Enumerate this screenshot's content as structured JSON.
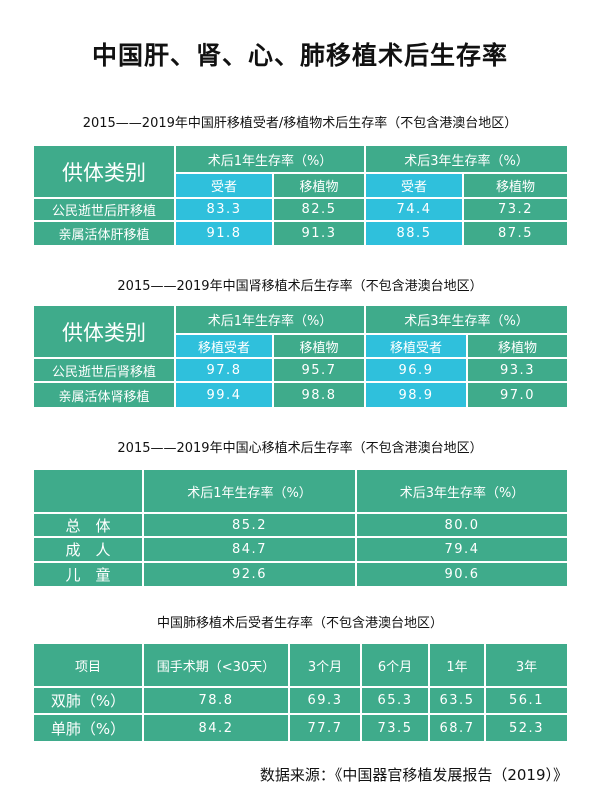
{
  "title": "中国肝、肾、心、肺移植术后生存率",
  "liver": {
    "subtitle": "2015——2019年中国肝移植受者/移植物术后生存率（不包含港澳台地区）",
    "corner": "供体类别",
    "groups": [
      "术后1年生存率（%）",
      "术后3年生存率（%）"
    ],
    "subheaders": [
      "受者",
      "移植物",
      "受者",
      "移植物"
    ],
    "rows": [
      {
        "label": "公民逝世后肝移植",
        "values": [
          "83.3",
          "82.5",
          "74.4",
          "73.2"
        ]
      },
      {
        "label": "亲属活体肝移植",
        "values": [
          "91.8",
          "91.3",
          "88.5",
          "87.5"
        ]
      }
    ]
  },
  "kidney": {
    "subtitle": "2015——2019年中国肾移植术后生存率（不包含港澳台地区）",
    "corner": "供体类别",
    "groups": [
      "术后1年生存率（%）",
      "术后3年生存率（%）"
    ],
    "subheaders": [
      "移植受者",
      "移植物",
      "移植受者",
      "移植物"
    ],
    "rows": [
      {
        "label": "公民逝世后肾移植",
        "values": [
          "97.8",
          "95.7",
          "96.9",
          "93.3"
        ]
      },
      {
        "label": "亲属活体肾移植",
        "values": [
          "99.4",
          "98.8",
          "98.9",
          "97.0"
        ]
      }
    ]
  },
  "heart": {
    "subtitle": "2015——2019年中国心移植术后生存率（不包含港澳台地区）",
    "headers": [
      "",
      "术后1年生存率（%）",
      "术后3年生存率（%）"
    ],
    "rows": [
      {
        "label": "总　体",
        "values": [
          "85.2",
          "80.0"
        ]
      },
      {
        "label": "成　人",
        "values": [
          "84.7",
          "79.4"
        ]
      },
      {
        "label": "儿　童",
        "values": [
          "92.6",
          "90.6"
        ]
      }
    ]
  },
  "lung": {
    "subtitle": "中国肺移植术后受者生存率（不包含港澳台地区）",
    "headers": [
      "项目",
      "围手术期（<30天）",
      "3个月",
      "6个月",
      "1年",
      "3年"
    ],
    "rows": [
      {
        "label": "双肺（%）",
        "values": [
          "78.8",
          "69.3",
          "65.3",
          "63.5",
          "56.1"
        ]
      },
      {
        "label": "单肺（%）",
        "values": [
          "84.2",
          "77.7",
          "73.5",
          "68.7",
          "52.3"
        ]
      }
    ]
  },
  "source": "数据来源：《中国器官移植发展报告（2019）》",
  "colors": {
    "green": "#3fab8b",
    "cyan": "#2fc0dc"
  }
}
